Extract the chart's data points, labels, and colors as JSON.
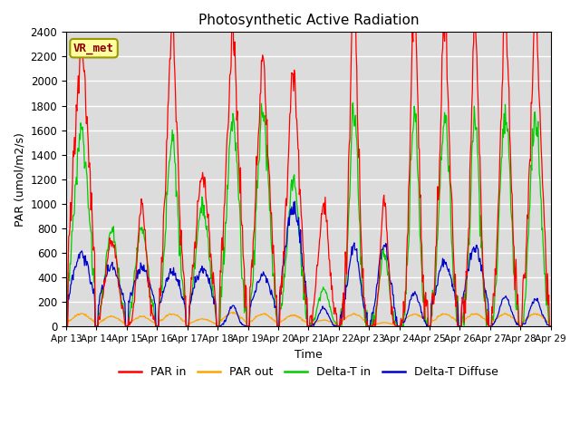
{
  "title": "Photosynthetic Active Radiation",
  "xlabel": "Time",
  "ylabel": "PAR (umol/m2/s)",
  "ylim": [
    0,
    2400
  ],
  "label_box": "VR_met",
  "colors": {
    "PAR in": "#ff0000",
    "PAR out": "#ffa500",
    "Delta-T in": "#00cc00",
    "Delta-T Diffuse": "#0000cd"
  },
  "legend_labels": [
    "PAR in",
    "PAR out",
    "Delta-T in",
    "Delta-T Diffuse"
  ],
  "bg_color": "#dcdcdc",
  "n_days": 16,
  "start_day": 13,
  "pts_per_day": 48,
  "day_peaks": {
    "PAR in": [
      2050,
      700,
      990,
      2200,
      1230,
      2100,
      1930,
      1850,
      960,
      2500,
      1020,
      2350,
      2200,
      2200,
      2200,
      2200
    ],
    "PAR out": [
      100,
      80,
      80,
      100,
      60,
      110,
      100,
      90,
      50,
      100,
      30,
      100,
      100,
      100,
      100,
      100
    ],
    "Delta-T in": [
      1570,
      800,
      800,
      1500,
      960,
      1690,
      1720,
      1200,
      300,
      1760,
      600,
      1700,
      1700,
      1700,
      1700,
      1700
    ],
    "Delta-T Diffuse": [
      590,
      480,
      470,
      450,
      470,
      170,
      410,
      970,
      150,
      650,
      660,
      270,
      520,
      640,
      240,
      220
    ]
  },
  "day_widths": {
    "PAR in": [
      0.28,
      0.2,
      0.15,
      0.2,
      0.22,
      0.22,
      0.22,
      0.22,
      0.18,
      0.15,
      0.12,
      0.15,
      0.18,
      0.15,
      0.18,
      0.2
    ],
    "PAR out": [
      0.3,
      0.28,
      0.28,
      0.3,
      0.3,
      0.3,
      0.3,
      0.3,
      0.28,
      0.3,
      0.25,
      0.3,
      0.3,
      0.3,
      0.3,
      0.3
    ],
    "Delta-T in": [
      0.25,
      0.2,
      0.2,
      0.2,
      0.22,
      0.2,
      0.2,
      0.2,
      0.18,
      0.15,
      0.15,
      0.15,
      0.18,
      0.15,
      0.18,
      0.18
    ],
    "Delta-T Diffuse": [
      0.32,
      0.32,
      0.32,
      0.3,
      0.3,
      0.15,
      0.3,
      0.28,
      0.15,
      0.2,
      0.2,
      0.18,
      0.28,
      0.28,
      0.18,
      0.18
    ]
  }
}
